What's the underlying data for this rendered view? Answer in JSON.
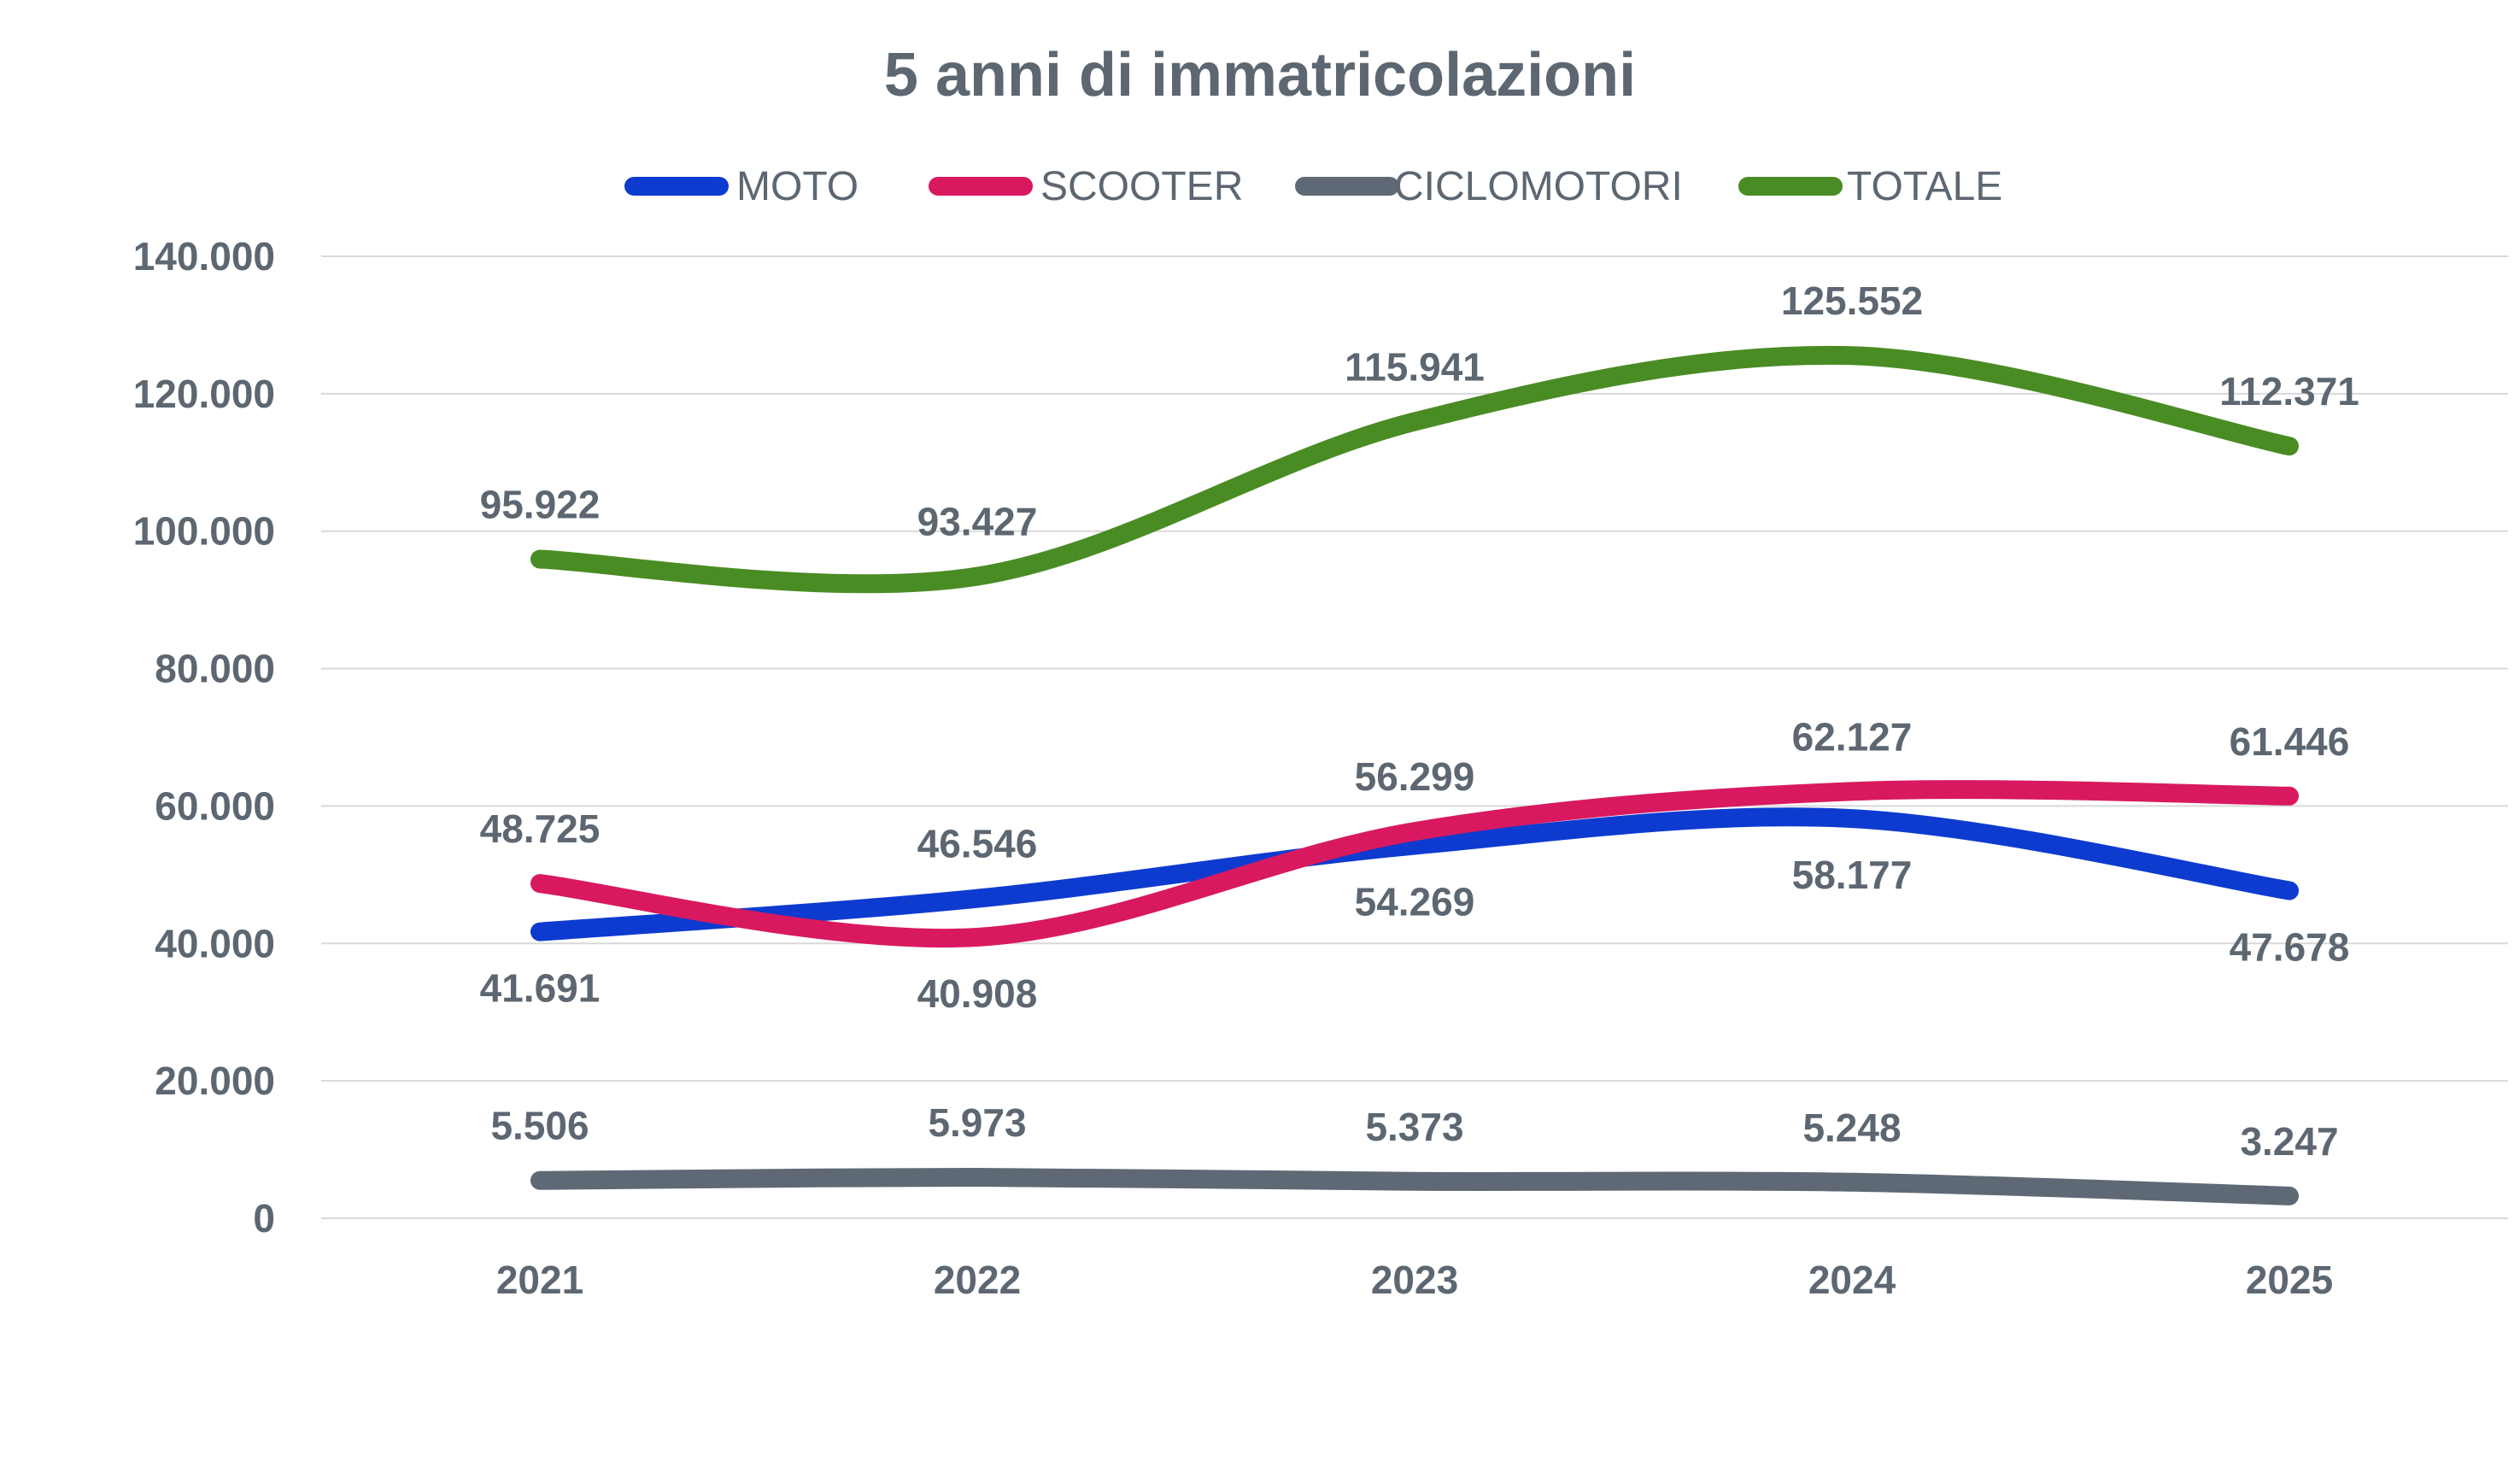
{
  "chart_data": {
    "type": "line",
    "title": "5 anni di immatricolazioni",
    "xlabel": "",
    "ylabel": "",
    "categories": [
      "2021",
      "2022",
      "2023",
      "2024",
      "2025"
    ],
    "ylim": [
      0,
      140000
    ],
    "yticks": [
      0,
      20000,
      40000,
      60000,
      80000,
      100000,
      120000,
      140000
    ],
    "ytick_labels": [
      "0",
      "20.000",
      "40.000",
      "60.000",
      "80.000",
      "100.000",
      "120.000",
      "140.000"
    ],
    "grid": true,
    "legend_position": "top",
    "smooth": true,
    "series": [
      {
        "name": "MOTO",
        "color": "#0d3bd0",
        "values": [
          41691,
          46546,
          54269,
          58177,
          47678
        ],
        "labels": [
          "41.691",
          "46.546",
          "54.269",
          "58.177",
          "47.678"
        ],
        "label_side": [
          "below",
          "above",
          "below",
          "below",
          "below"
        ]
      },
      {
        "name": "SCOOTER",
        "color": "#d8195f",
        "values": [
          48725,
          40908,
          56299,
          62127,
          61446
        ],
        "labels": [
          "48.725",
          "40.908",
          "56.299",
          "62.127",
          "61.446"
        ],
        "label_side": [
          "above",
          "below",
          "above",
          "above",
          "above"
        ]
      },
      {
        "name": "CICLOMOTORI",
        "color": "#5f6975",
        "values": [
          5506,
          5973,
          5373,
          5248,
          3247
        ],
        "labels": [
          "5.506",
          "5.973",
          "5.373",
          "5.248",
          "3.247"
        ],
        "label_side": [
          "above",
          "above",
          "above",
          "above",
          "above"
        ]
      },
      {
        "name": "TOTALE",
        "color": "#4a8c24",
        "values": [
          95922,
          93427,
          115941,
          125552,
          112371
        ],
        "labels": [
          "95.922",
          "93.427",
          "115.941",
          "125.552",
          "112.371"
        ],
        "label_side": [
          "above",
          "above",
          "above",
          "above",
          "above"
        ]
      }
    ],
    "text_color": "#5d6772",
    "grid_color": "#d9d9d9"
  }
}
